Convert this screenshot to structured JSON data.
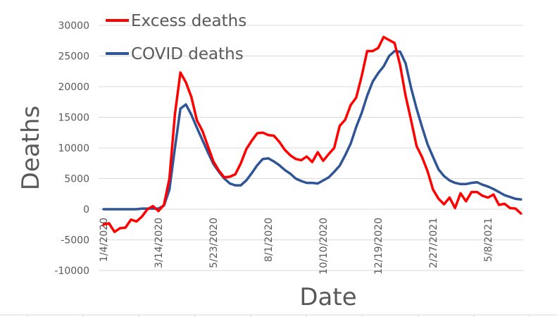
{
  "chart_data": {
    "type": "line",
    "title": "",
    "xlabel": "Date",
    "ylabel": "Deaths",
    "ylim": [
      -10000,
      30000
    ],
    "y_ticks": [
      30000,
      25000,
      20000,
      15000,
      10000,
      5000,
      0,
      -5000,
      -10000
    ],
    "y_tick_labels": [
      "30000",
      "25000",
      "20000",
      "15000",
      "10000",
      "5000",
      "0",
      "-5000",
      "-10000"
    ],
    "x_tick_labels": [
      "1/4/2020",
      "3/14/2020",
      "5/23/2020",
      "8/1/2020",
      "10/10/2020",
      "12/19/2020",
      "2/27/2021",
      "5/8/2021"
    ],
    "x_tick_index": [
      0,
      10,
      20,
      30,
      40,
      50,
      60,
      70
    ],
    "x_interval": "weekly",
    "grid": true,
    "legend": "top-left",
    "series": [
      {
        "name": "Excess deaths",
        "color": "#ff0000",
        "values": [
          -2500,
          -2300,
          -3700,
          -3100,
          -3000,
          -1700,
          -2000,
          -1200,
          0,
          500,
          -300,
          700,
          5000,
          15500,
          22300,
          20700,
          18300,
          14500,
          12800,
          10300,
          7800,
          6300,
          5200,
          5300,
          5700,
          7500,
          9800,
          11200,
          12400,
          12500,
          12100,
          12000,
          11000,
          9700,
          8800,
          8200,
          8000,
          8600,
          7700,
          9300,
          7900,
          9000,
          10000,
          13600,
          14600,
          17000,
          18200,
          21700,
          25800,
          25800,
          26300,
          28100,
          27600,
          27100,
          23500,
          18500,
          14500,
          10300,
          8500,
          6200,
          3200,
          1700,
          800,
          1900,
          200,
          2600,
          1300,
          2800,
          2800,
          2200,
          1900,
          2400,
          700,
          900,
          200,
          100,
          -700
        ]
      },
      {
        "name": "COVID deaths",
        "color": "#2f5597",
        "values": [
          0,
          0,
          0,
          0,
          0,
          0,
          0,
          100,
          100,
          100,
          100,
          600,
          3200,
          10000,
          16400,
          17100,
          15400,
          13300,
          11300,
          9300,
          7400,
          6100,
          5000,
          4200,
          3900,
          3900,
          4700,
          5900,
          7200,
          8200,
          8300,
          7800,
          7200,
          6400,
          5800,
          5000,
          4600,
          4300,
          4300,
          4200,
          4700,
          5200,
          6100,
          7100,
          8800,
          10700,
          13400,
          15700,
          18500,
          20800,
          22200,
          23300,
          25000,
          25800,
          25700,
          23800,
          19800,
          16400,
          13400,
          10600,
          8500,
          6500,
          5400,
          4700,
          4300,
          4100,
          4100,
          4300,
          4400,
          4000,
          3700,
          3300,
          2800,
          2300,
          2000,
          1700,
          1600
        ]
      }
    ]
  },
  "legend": {
    "items": [
      "Excess deaths",
      "COVID deaths"
    ]
  }
}
